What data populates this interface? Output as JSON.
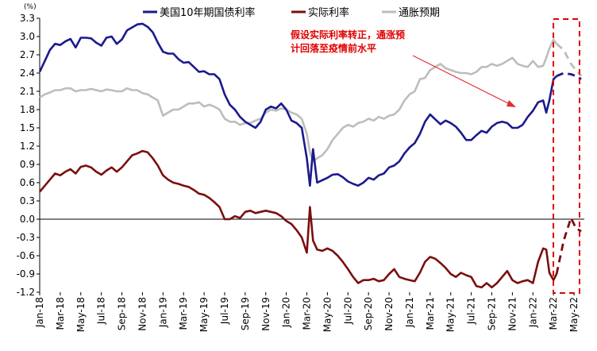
{
  "chart_data": {
    "type": "line",
    "unit_label": "(%)",
    "annotation": [
      "假设实际利率转正，通涨预",
      "计回落至疫情前水平"
    ],
    "ylim": [
      -1.2,
      3.3
    ],
    "yticks": [
      "3.3",
      "3.0",
      "2.7",
      "2.4",
      "2.1",
      "1.8",
      "1.5",
      "1.2",
      "0.9",
      "0.6",
      "0.3",
      "0.0",
      "-0.3",
      "-0.6",
      "-0.9",
      "-1.2"
    ],
    "ytick_values": [
      3.3,
      3.0,
      2.7,
      2.4,
      2.1,
      1.8,
      1.5,
      1.2,
      0.9,
      0.6,
      0.3,
      0.0,
      -0.3,
      -0.6,
      -0.9,
      -1.2
    ],
    "xticks": [
      "Jan-18",
      "Mar-18",
      "May-18",
      "Jul-18",
      "Sep-18",
      "Nov-18",
      "Jan-19",
      "Mar-19",
      "May-19",
      "Jul-19",
      "Sep-19",
      "Nov-19",
      "Jan-20",
      "Mar-20",
      "May-20",
      "Jul-20",
      "Sep-20",
      "Nov-20",
      "Jan-21",
      "Mar-21",
      "May-21",
      "Jul-21",
      "Sep-21",
      "Nov-21",
      "Jan-22",
      "Mar-22",
      "May-22"
    ],
    "x_months": [
      0,
      2,
      4,
      6,
      8,
      10,
      12,
      14,
      16,
      18,
      20,
      22,
      24,
      26,
      28,
      30,
      32,
      34,
      36,
      38,
      40,
      42,
      44,
      46,
      48,
      50,
      52
    ],
    "xlim_months": [
      0,
      53
    ],
    "forecast_start_month": 50.3,
    "series": [
      {
        "name": "美国10年期国债利率",
        "color": "#1a1a8c",
        "x": [
          0,
          0.5,
          1,
          1.5,
          2,
          2.5,
          3,
          3.5,
          4,
          4.5,
          5,
          5.5,
          6,
          6.5,
          7,
          7.5,
          8,
          8.5,
          9,
          9.5,
          10,
          10.5,
          11,
          11.5,
          12,
          12.5,
          13,
          13.5,
          14,
          14.5,
          15,
          15.5,
          16,
          16.5,
          17,
          17.5,
          18,
          18.5,
          19,
          19.5,
          20,
          20.5,
          21,
          21.5,
          22,
          22.5,
          23,
          23.5,
          24,
          24.5,
          25,
          25.5,
          26,
          26.3,
          26.6,
          27,
          27.5,
          28,
          28.5,
          29,
          29.5,
          30,
          30.5,
          31,
          31.5,
          32,
          32.5,
          33,
          33.5,
          34,
          34.5,
          35,
          35.5,
          36,
          36.5,
          37,
          37.5,
          38,
          38.5,
          39,
          39.5,
          40,
          40.5,
          41,
          41.5,
          42,
          42.5,
          43,
          43.5,
          44,
          44.5,
          45,
          45.5,
          46,
          46.5,
          47,
          47.5,
          48,
          48.5,
          49,
          49.3,
          49.6,
          50,
          50.3
        ],
        "values": [
          2.42,
          2.6,
          2.78,
          2.88,
          2.86,
          2.92,
          2.96,
          2.82,
          2.98,
          2.98,
          2.97,
          2.9,
          2.85,
          2.98,
          3.0,
          2.88,
          2.95,
          3.1,
          3.15,
          3.2,
          3.21,
          3.16,
          3.07,
          2.9,
          2.75,
          2.72,
          2.72,
          2.63,
          2.57,
          2.58,
          2.5,
          2.42,
          2.43,
          2.38,
          2.38,
          2.3,
          2.05,
          1.88,
          1.8,
          1.68,
          1.6,
          1.55,
          1.5,
          1.6,
          1.8,
          1.85,
          1.82,
          1.9,
          1.8,
          1.62,
          1.58,
          1.5,
          1.0,
          0.55,
          1.15,
          0.6,
          0.64,
          0.68,
          0.73,
          0.74,
          0.69,
          0.62,
          0.58,
          0.55,
          0.6,
          0.68,
          0.65,
          0.72,
          0.75,
          0.85,
          0.88,
          0.95,
          1.08,
          1.18,
          1.25,
          1.4,
          1.6,
          1.72,
          1.64,
          1.56,
          1.62,
          1.58,
          1.52,
          1.42,
          1.3,
          1.3,
          1.38,
          1.45,
          1.42,
          1.52,
          1.58,
          1.6,
          1.58,
          1.5,
          1.5,
          1.55,
          1.68,
          1.78,
          1.92,
          1.95,
          1.75,
          1.95,
          2.3,
          2.35
        ]
      },
      {
        "name": "实际利率",
        "color": "#7a0f0f",
        "x": [
          0,
          0.5,
          1,
          1.5,
          2,
          2.5,
          3,
          3.5,
          4,
          4.5,
          5,
          5.5,
          6,
          6.5,
          7,
          7.5,
          8,
          8.5,
          9,
          9.5,
          10,
          10.5,
          11,
          11.5,
          12,
          12.5,
          13,
          13.5,
          14,
          14.5,
          15,
          15.5,
          16,
          16.5,
          17,
          17.5,
          18,
          18.5,
          19,
          19.5,
          20,
          20.5,
          21,
          21.5,
          22,
          22.5,
          23,
          23.5,
          24,
          24.5,
          25,
          25.5,
          26,
          26.3,
          26.6,
          27,
          27.5,
          28,
          28.5,
          29,
          29.5,
          30,
          30.5,
          31,
          31.5,
          32,
          32.5,
          33,
          33.5,
          34,
          34.5,
          35,
          35.5,
          36,
          36.5,
          37,
          37.5,
          38,
          38.5,
          39,
          39.5,
          40,
          40.5,
          41,
          41.5,
          42,
          42.5,
          43,
          43.5,
          44,
          44.5,
          45,
          45.5,
          46,
          46.5,
          47,
          47.5,
          48,
          48.5,
          49,
          49.3,
          49.6,
          50,
          50.3
        ],
        "values": [
          0.45,
          0.55,
          0.65,
          0.75,
          0.72,
          0.78,
          0.82,
          0.75,
          0.86,
          0.88,
          0.85,
          0.78,
          0.73,
          0.8,
          0.85,
          0.78,
          0.85,
          0.95,
          1.05,
          1.08,
          1.12,
          1.1,
          1.0,
          0.88,
          0.72,
          0.65,
          0.6,
          0.58,
          0.55,
          0.53,
          0.48,
          0.42,
          0.4,
          0.35,
          0.28,
          0.2,
          0.0,
          0.0,
          0.05,
          0.02,
          0.12,
          0.14,
          0.1,
          0.12,
          0.14,
          0.12,
          0.1,
          0.05,
          -0.03,
          -0.08,
          -0.18,
          -0.3,
          -0.55,
          0.2,
          -0.35,
          -0.5,
          -0.52,
          -0.48,
          -0.52,
          -0.6,
          -0.7,
          -0.82,
          -0.95,
          -1.05,
          -1.0,
          -1.0,
          -0.98,
          -1.02,
          -1.0,
          -0.9,
          -0.82,
          -0.95,
          -0.98,
          -1.0,
          -1.02,
          -0.88,
          -0.7,
          -0.62,
          -0.65,
          -0.72,
          -0.8,
          -0.9,
          -0.95,
          -0.88,
          -0.92,
          -0.95,
          -1.1,
          -1.12,
          -1.05,
          -1.12,
          -1.05,
          -0.95,
          -0.85,
          -1.0,
          -1.05,
          -1.02,
          -1.0,
          -1.05,
          -0.7,
          -0.48,
          -0.5,
          -0.88,
          -1.0,
          -0.9
        ]
      },
      {
        "name": "通胀预期",
        "color": "#bdbdbd",
        "x": [
          0,
          0.5,
          1,
          1.5,
          2,
          2.5,
          3,
          3.5,
          4,
          4.5,
          5,
          5.5,
          6,
          6.5,
          7,
          7.5,
          8,
          8.5,
          9,
          9.5,
          10,
          10.5,
          11,
          11.5,
          12,
          12.5,
          13,
          13.5,
          14,
          14.5,
          15,
          15.5,
          16,
          16.5,
          17,
          17.5,
          18,
          18.5,
          19,
          19.5,
          20,
          20.5,
          21,
          21.5,
          22,
          22.5,
          23,
          23.5,
          24,
          24.5,
          25,
          25.5,
          26,
          26.3,
          26.6,
          27,
          27.5,
          28,
          28.5,
          29,
          29.5,
          30,
          30.5,
          31,
          31.5,
          32,
          32.5,
          33,
          33.5,
          34,
          34.5,
          35,
          35.5,
          36,
          36.5,
          37,
          37.5,
          38,
          38.5,
          39,
          39.5,
          40,
          40.5,
          41,
          41.5,
          42,
          42.5,
          43,
          43.5,
          44,
          44.5,
          45,
          45.5,
          46,
          46.5,
          47,
          47.5,
          48,
          48.5,
          49,
          49.3,
          49.6,
          50,
          50.3
        ],
        "values": [
          2.0,
          2.05,
          2.08,
          2.12,
          2.12,
          2.15,
          2.15,
          2.1,
          2.12,
          2.12,
          2.14,
          2.12,
          2.1,
          2.13,
          2.12,
          2.1,
          2.1,
          2.15,
          2.12,
          2.12,
          2.07,
          2.05,
          2.0,
          1.95,
          1.7,
          1.75,
          1.8,
          1.8,
          1.85,
          1.9,
          1.9,
          1.92,
          1.85,
          1.88,
          1.85,
          1.8,
          1.65,
          1.6,
          1.6,
          1.55,
          1.58,
          1.58,
          1.62,
          1.65,
          1.75,
          1.8,
          1.78,
          1.82,
          1.8,
          1.75,
          1.72,
          1.65,
          1.4,
          1.1,
          0.95,
          1.0,
          1.05,
          1.15,
          1.3,
          1.4,
          1.5,
          1.55,
          1.52,
          1.58,
          1.6,
          1.65,
          1.62,
          1.68,
          1.65,
          1.7,
          1.72,
          1.8,
          1.95,
          2.05,
          2.1,
          2.3,
          2.32,
          2.45,
          2.5,
          2.55,
          2.48,
          2.45,
          2.42,
          2.4,
          2.4,
          2.38,
          2.42,
          2.5,
          2.5,
          2.55,
          2.52,
          2.55,
          2.6,
          2.65,
          2.55,
          2.52,
          2.5,
          2.6,
          2.5,
          2.52,
          2.65,
          2.8,
          2.95,
          2.88
        ]
      }
    ],
    "forecast": {
      "x": [
        50.3,
        51,
        51.7,
        52.2,
        52.7
      ],
      "tips": [
        2.35,
        2.4,
        2.38,
        2.35,
        2.3
      ],
      "real": [
        -0.9,
        -0.35,
        0.02,
        -0.15,
        -0.2
      ],
      "infl": [
        2.88,
        2.78,
        2.55,
        2.45,
        2.35
      ]
    }
  }
}
